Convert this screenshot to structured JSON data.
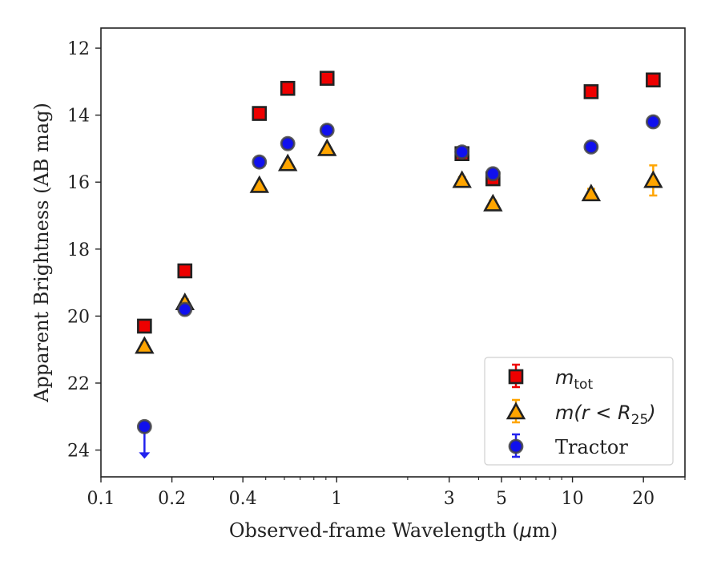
{
  "chart_data": {
    "type": "scatter",
    "xlabel_main": "Observed-frame Wavelength (",
    "xlabel_mu": "μ",
    "xlabel_end": "m)",
    "ylabel": "Apparent Brightness (AB mag)",
    "xscale": "log",
    "xlim": [
      0.1,
      30
    ],
    "ylim": [
      24.8,
      11.4
    ],
    "y_inverted": true,
    "x_ticks": [
      {
        "value": 0.1,
        "label": "0.1"
      },
      {
        "value": 0.2,
        "label": "0.2"
      },
      {
        "value": 0.4,
        "label": "0.4"
      },
      {
        "value": 1,
        "label": "1"
      },
      {
        "value": 3,
        "label": "3"
      },
      {
        "value": 5,
        "label": "5"
      },
      {
        "value": 10,
        "label": "10"
      },
      {
        "value": 20,
        "label": "20"
      }
    ],
    "x_minor_ticks": [
      0.3,
      0.5,
      0.6,
      0.7,
      0.8,
      0.9,
      2,
      4,
      6,
      7,
      8,
      9,
      30
    ],
    "y_ticks": [
      {
        "value": 12,
        "label": "12"
      },
      {
        "value": 14,
        "label": "14"
      },
      {
        "value": 16,
        "label": "16"
      },
      {
        "value": 18,
        "label": "18"
      },
      {
        "value": 20,
        "label": "20"
      },
      {
        "value": 22,
        "label": "22"
      },
      {
        "value": 24,
        "label": "24"
      }
    ],
    "legend_position": "lower-right",
    "series": [
      {
        "key": "mtot",
        "legend_main": "m",
        "legend_sub": "tot",
        "marker": "square",
        "color": "#ee0000",
        "errcolor": "#ee0000",
        "points": [
          {
            "x": 0.153,
            "y": 20.3,
            "err": 0.1
          },
          {
            "x": 0.227,
            "y": 18.65,
            "err": 0.1
          },
          {
            "x": 0.47,
            "y": 13.95,
            "err": 0.05
          },
          {
            "x": 0.62,
            "y": 13.2,
            "err": 0.05
          },
          {
            "x": 0.91,
            "y": 12.9,
            "err": 0.05
          },
          {
            "x": 3.4,
            "y": 15.15,
            "err": 0.08
          },
          {
            "x": 4.6,
            "y": 15.9,
            "err": 0.12
          },
          {
            "x": 12.0,
            "y": 13.3,
            "err": 0.08
          },
          {
            "x": 22.0,
            "y": 12.95,
            "err": 0.08
          }
        ]
      },
      {
        "key": "mr25",
        "legend_main": "m(r < R",
        "legend_sub": "25",
        "legend_close": ")",
        "marker": "triangle",
        "color": "#ffa500",
        "errcolor": "#ffa500",
        "points": [
          {
            "x": 0.153,
            "y": 20.9,
            "err": 0.1
          },
          {
            "x": 0.227,
            "y": 19.6,
            "err": 0.1
          },
          {
            "x": 0.47,
            "y": 16.1,
            "err": 0.05
          },
          {
            "x": 0.62,
            "y": 15.45,
            "err": 0.05
          },
          {
            "x": 0.91,
            "y": 15.0,
            "err": 0.05
          },
          {
            "x": 3.4,
            "y": 15.95,
            "err": 0.1
          },
          {
            "x": 4.6,
            "y": 16.65,
            "err": 0.1
          },
          {
            "x": 12.0,
            "y": 16.35,
            "err": 0.15
          },
          {
            "x": 22.0,
            "y": 15.95,
            "err": 0.45
          }
        ]
      },
      {
        "key": "tractor",
        "legend_main": "Tractor",
        "marker": "circle",
        "color": "#1010ee",
        "errcolor": "#2222ee",
        "points": [
          {
            "x": 0.153,
            "y": 23.3,
            "upper_limit": true
          },
          {
            "x": 0.227,
            "y": 19.8,
            "err": 0.05
          },
          {
            "x": 0.47,
            "y": 15.4,
            "err": 0.05
          },
          {
            "x": 0.62,
            "y": 14.85,
            "err": 0.05
          },
          {
            "x": 0.91,
            "y": 14.45,
            "err": 0.05
          },
          {
            "x": 3.4,
            "y": 15.1,
            "err": 0.05
          },
          {
            "x": 4.6,
            "y": 15.75,
            "err": 0.05
          },
          {
            "x": 12.0,
            "y": 14.95,
            "err": 0.05
          },
          {
            "x": 22.0,
            "y": 14.2,
            "err": 0.05
          }
        ]
      }
    ]
  }
}
